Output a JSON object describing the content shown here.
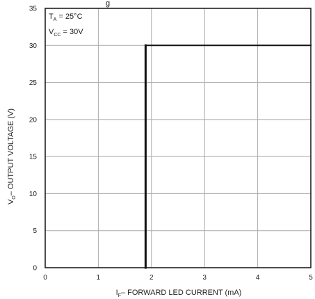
{
  "title_fragment": "g",
  "chart_data": {
    "type": "line",
    "xlabel": {
      "symbol": "I",
      "subscript": "F",
      "text": "– FORWARD LED CURRENT (mA)"
    },
    "ylabel": {
      "symbol": "V",
      "subscript": "O",
      "text": "– OUTPUT VOLTAGE (V)"
    },
    "xlim": [
      0,
      5
    ],
    "ylim": [
      0,
      35
    ],
    "xticks": [
      "0",
      "1",
      "2",
      "3",
      "4",
      "5"
    ],
    "yticks": [
      "0",
      "5",
      "10",
      "15",
      "20",
      "25",
      "30",
      "35"
    ],
    "grid": true,
    "conditions": [
      {
        "symbol": "T",
        "subscript": "A",
        "value": " = 25°C"
      },
      {
        "symbol": "V",
        "subscript": "CC",
        "value": " = 30V"
      }
    ],
    "series": [
      {
        "x": [
          1.89,
          1.89,
          1.89,
          5.0
        ],
        "y": [
          0,
          29.9,
          29.9,
          29.9
        ],
        "segments": [
          {
            "x": [
              1.89,
              1.89
            ],
            "y": [
              0,
              30
            ],
            "weight": "heavy"
          },
          {
            "x": [
              1.89,
              5.0
            ],
            "y": [
              30,
              30
            ],
            "weight": "light"
          }
        ]
      }
    ],
    "colors": {
      "line": "#111111",
      "grid": "#a9a9a9",
      "background": "#ffffff"
    }
  }
}
